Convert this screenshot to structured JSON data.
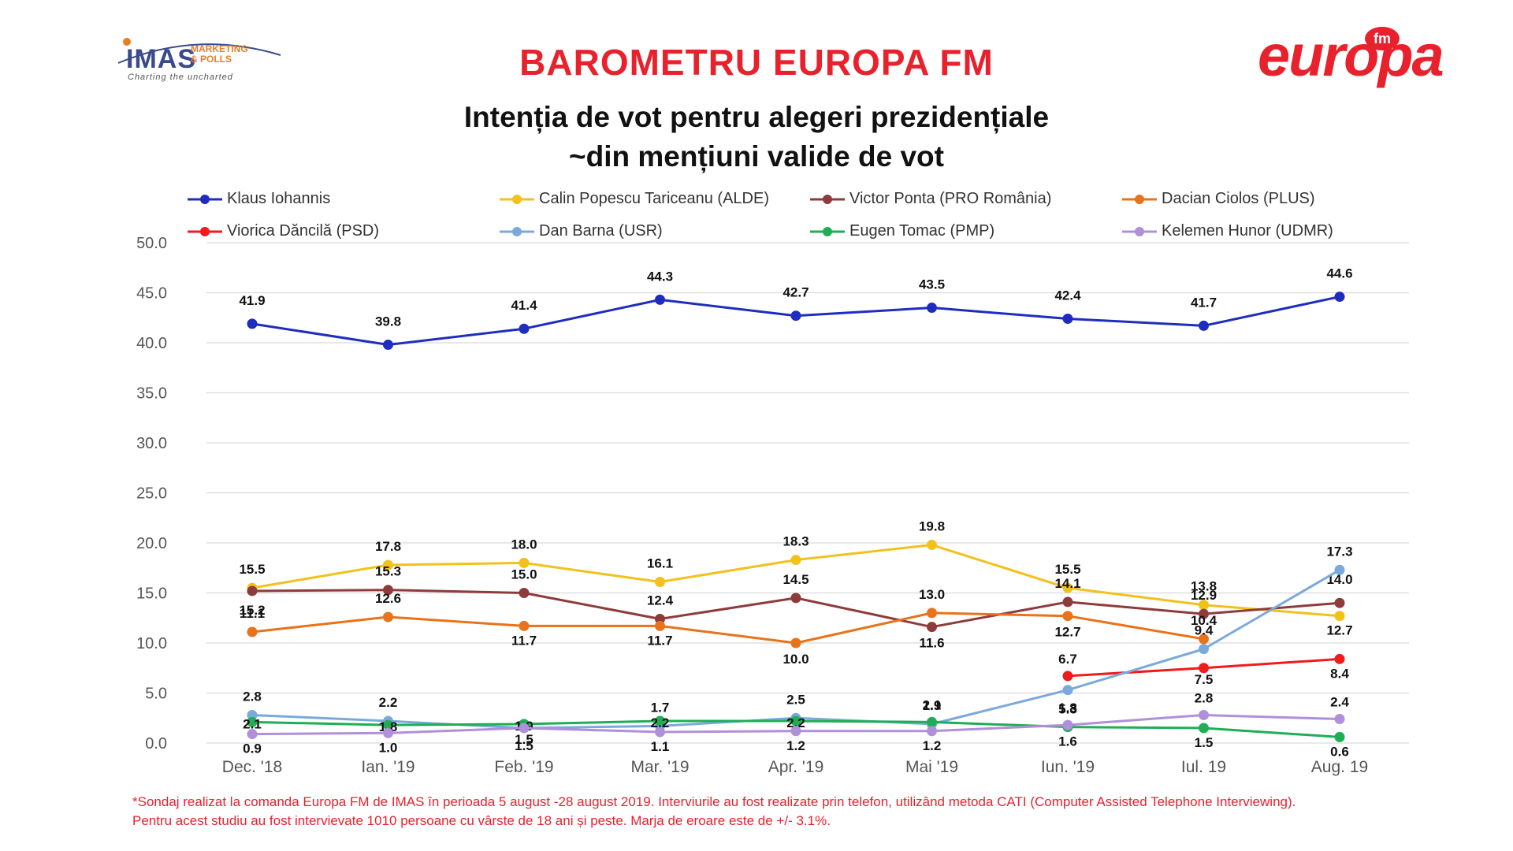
{
  "header": {
    "imas_logo": {
      "name": "IMAS",
      "sub_line1": "MARKETING",
      "sub_line2": "& POLLS",
      "tagline": "Charting the uncharted"
    },
    "europa_logo": {
      "word": "europa",
      "badge": "fm"
    },
    "title": "BAROMETRU EUROPA FM",
    "subtitle_line1": "Intenția de vot pentru alegeri prezidențiale",
    "subtitle_line2": "~din mențiuni valide de vot"
  },
  "footnote": {
    "line1": "*Sondaj realizat la comanda Europa FM de IMAS în perioada 5 august -28 august 2019. Interviurile au fost realizate prin telefon, utilizând metoda CATI (Computer Assisted Telephone Interviewing).",
    "line2": "Pentru acest studiu au fost intervievate 1010 persoane cu vârste de 18 ani și peste. Marja de eroare este de +/- 3.1%."
  },
  "chart_data": {
    "type": "line",
    "categories": [
      "Dec. '18",
      "Ian. '19",
      "Feb. '19",
      "Mar. '19",
      "Apr. '19",
      "Mai '19",
      "Iun. '19",
      "Iul. 19",
      "Aug. 19"
    ],
    "ylim": [
      0,
      50
    ],
    "yticks": [
      "0.0",
      "5.0",
      "10.0",
      "15.0",
      "20.0",
      "25.0",
      "30.0",
      "35.0",
      "40.0",
      "45.0",
      "50.0"
    ],
    "grid": true,
    "legend_position": "top",
    "series": [
      {
        "name": "Klaus Iohannis",
        "color": "#1f2dbf",
        "values": [
          41.9,
          39.8,
          41.4,
          44.3,
          42.7,
          43.5,
          42.4,
          41.7,
          44.6
        ]
      },
      {
        "name": "Calin Popescu Tariceanu (ALDE)",
        "color": "#f2c11c",
        "values": [
          15.5,
          17.8,
          18.0,
          16.1,
          18.3,
          19.8,
          15.5,
          13.8,
          12.7
        ]
      },
      {
        "name": "Victor Ponta (PRO România)",
        "color": "#8e3b3b",
        "values": [
          15.2,
          15.3,
          15.0,
          12.4,
          14.5,
          11.6,
          14.1,
          12.9,
          14.0
        ]
      },
      {
        "name": "Dacian Ciolos (PLUS)",
        "color": "#e8731a",
        "values": [
          11.1,
          12.6,
          11.7,
          11.7,
          10.0,
          13.0,
          12.7,
          10.4,
          null
        ]
      },
      {
        "name": "Viorica Dăncilă (PSD)",
        "color": "#ef1c1c",
        "values": [
          null,
          null,
          null,
          null,
          null,
          null,
          6.7,
          7.5,
          8.4
        ]
      },
      {
        "name": "Dan Barna (USR)",
        "color": "#7ba9dc",
        "values": [
          2.8,
          2.2,
          1.5,
          1.7,
          2.5,
          1.9,
          5.3,
          9.4,
          17.3
        ]
      },
      {
        "name": "Eugen Tomac (PMP)",
        "color": "#1fae55",
        "values": [
          2.1,
          1.8,
          1.9,
          2.2,
          2.2,
          2.1,
          1.6,
          1.5,
          0.6
        ]
      },
      {
        "name": "Kelemen Hunor (UDMR)",
        "color": "#b08fdb",
        "values": [
          0.9,
          1.0,
          1.5,
          1.1,
          1.2,
          1.2,
          1.8,
          2.8,
          2.4
        ]
      }
    ]
  }
}
